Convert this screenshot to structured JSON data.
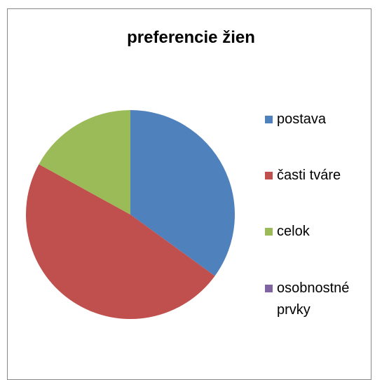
{
  "chart_data": {
    "type": "pie",
    "title": "preferencie žien",
    "categories": [
      "postava",
      "časti tváre",
      "celok",
      "osobnostné prvky"
    ],
    "values": [
      35,
      48,
      17,
      0
    ],
    "colors": [
      "#4f81bd",
      "#c0504d",
      "#9bbb59",
      "#8064a2"
    ],
    "legend": "right"
  }
}
